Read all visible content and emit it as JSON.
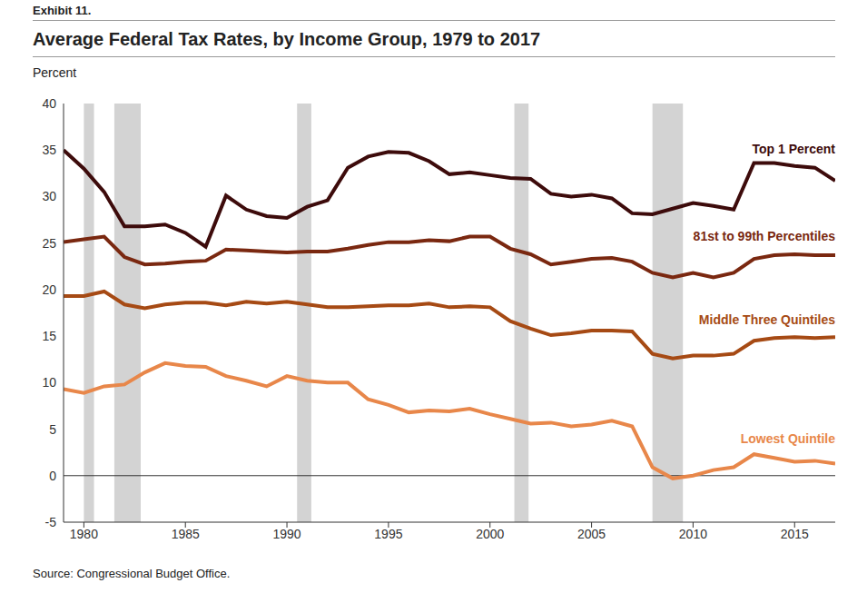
{
  "chart_data": {
    "type": "line",
    "label": "Exhibit 11.",
    "title": "Average Federal Tax Rates, by Income Group, 1979 to 2017",
    "ylabel": "Percent",
    "source": "Source: Congressional Budget Office.",
    "x": [
      1979,
      1980,
      1981,
      1982,
      1983,
      1984,
      1985,
      1986,
      1987,
      1988,
      1989,
      1990,
      1991,
      1992,
      1993,
      1994,
      1995,
      1996,
      1997,
      1998,
      1999,
      2000,
      2001,
      2002,
      2003,
      2004,
      2005,
      2006,
      2007,
      2008,
      2009,
      2010,
      2011,
      2012,
      2013,
      2014,
      2015,
      2016,
      2017
    ],
    "series": [
      {
        "name": "Top 1 Percent",
        "color": "#3d0b0b",
        "values": [
          35,
          33,
          30.5,
          26.8,
          26.8,
          27,
          26.1,
          24.6,
          30.1,
          28.6,
          27.9,
          27.7,
          28.9,
          29.6,
          33.1,
          34.3,
          34.8,
          34.7,
          33.8,
          32.4,
          32.6,
          32.3,
          32.0,
          31.9,
          30.3,
          30.0,
          30.2,
          29.8,
          28.2,
          28.1,
          28.7,
          29.3,
          29.0,
          28.6,
          33.6,
          33.6,
          33.3,
          33.1,
          31.7
        ]
      },
      {
        "name": "81st to 99th Percentiles",
        "color": "#7a2810",
        "values": [
          25.1,
          25.4,
          25.7,
          23.5,
          22.7,
          22.8,
          23.0,
          23.1,
          24.3,
          24.2,
          24.1,
          24.0,
          24.1,
          24.1,
          24.4,
          24.8,
          25.1,
          25.1,
          25.3,
          25.2,
          25.7,
          25.7,
          24.4,
          23.8,
          22.7,
          23.0,
          23.3,
          23.4,
          23.0,
          21.8,
          21.3,
          21.8,
          21.3,
          21.8,
          23.3,
          23.7,
          23.8,
          23.7,
          23.7
        ]
      },
      {
        "name": "Middle Three Quintiles",
        "color": "#a64a14",
        "values": [
          19.3,
          19.3,
          19.8,
          18.4,
          18.0,
          18.4,
          18.6,
          18.6,
          18.3,
          18.7,
          18.5,
          18.7,
          18.4,
          18.1,
          18.1,
          18.2,
          18.3,
          18.3,
          18.5,
          18.1,
          18.2,
          18.1,
          16.6,
          15.8,
          15.1,
          15.3,
          15.6,
          15.6,
          15.5,
          13.1,
          12.6,
          12.9,
          12.9,
          13.1,
          14.5,
          14.8,
          14.9,
          14.8,
          14.9
        ]
      },
      {
        "name": "Lowest Quintile",
        "color": "#e8874a",
        "values": [
          9.3,
          8.9,
          9.6,
          9.8,
          11.1,
          12.1,
          11.8,
          11.7,
          10.7,
          10.2,
          9.6,
          10.7,
          10.2,
          10.0,
          10.0,
          8.2,
          7.6,
          6.8,
          7.0,
          6.9,
          7.2,
          6.6,
          6.1,
          5.6,
          5.7,
          5.3,
          5.5,
          5.9,
          5.3,
          0.9,
          -0.3,
          0.0,
          0.6,
          0.9,
          2.3,
          1.9,
          1.5,
          1.6,
          1.3
        ]
      }
    ],
    "recessions": [
      [
        1980.0,
        1980.5
      ],
      [
        1981.5,
        1982.8
      ],
      [
        1990.5,
        1991.2
      ],
      [
        2001.2,
        2001.9
      ],
      [
        2008.0,
        2009.5
      ]
    ],
    "hlines": [
      0
    ],
    "xlim": [
      1979,
      2017
    ],
    "ylim": [
      -5,
      40
    ],
    "xticks": [
      1980,
      1985,
      1990,
      1995,
      2000,
      2005,
      2010,
      2015
    ],
    "yticks": [
      -5,
      0,
      5,
      10,
      15,
      20,
      25,
      30,
      35,
      40
    ],
    "grid": false
  }
}
